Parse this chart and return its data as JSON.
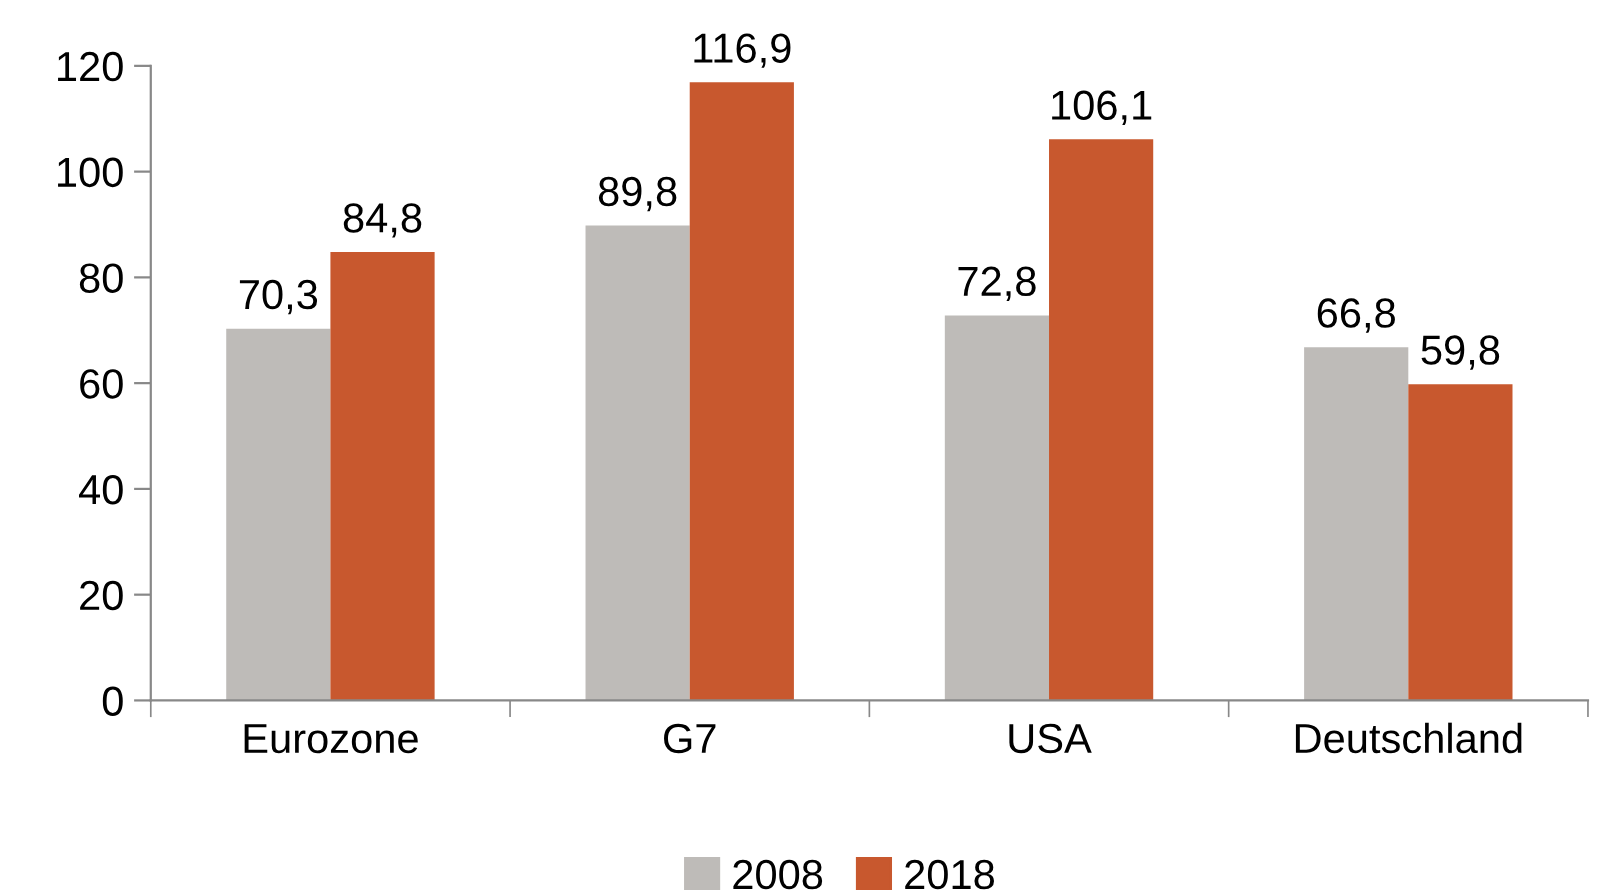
{
  "chart_data": {
    "type": "bar",
    "categories": [
      "Eurozone",
      "G7",
      "USA",
      "Deutschland"
    ],
    "series": [
      {
        "name": "2008",
        "color": "#bebbb8",
        "values": [
          70.3,
          89.8,
          72.8,
          66.8
        ],
        "value_labels": [
          "70,3",
          "89,8",
          "72,8",
          "66,8"
        ]
      },
      {
        "name": "2018",
        "color": "#c8582e",
        "values": [
          84.8,
          116.9,
          106.1,
          59.8
        ],
        "value_labels": [
          "84,8",
          "116,9",
          "106,1",
          "59,8"
        ]
      }
    ],
    "ylim": [
      0,
      120
    ],
    "yticks": [
      0,
      20,
      40,
      60,
      80,
      100,
      120
    ],
    "grid": false,
    "legend": "bottom"
  }
}
